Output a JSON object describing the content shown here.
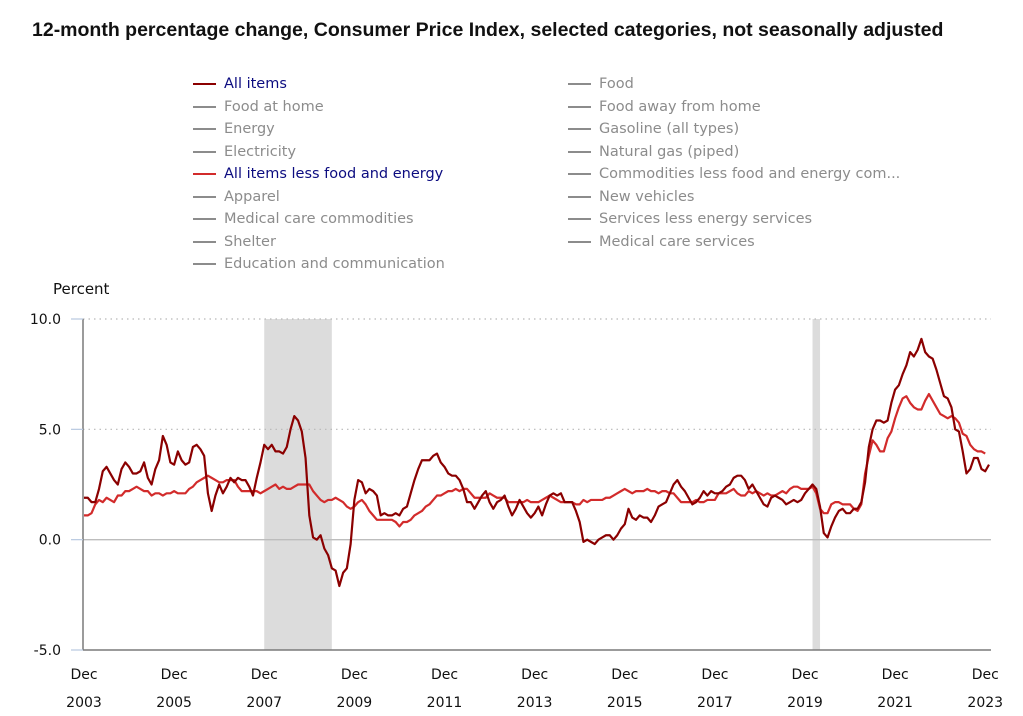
{
  "title": "12-month percentage change, Consumer Price Index, selected categories, not seasonally adjusted",
  "legend": {
    "left": [
      {
        "label": "All items",
        "active": true,
        "color": "#8b0000"
      },
      {
        "label": "Food at home",
        "active": false,
        "color": "#8c8c8c"
      },
      {
        "label": "Energy",
        "active": false,
        "color": "#8c8c8c"
      },
      {
        "label": "Electricity",
        "active": false,
        "color": "#8c8c8c"
      },
      {
        "label": "All items less food and energy",
        "active": true,
        "color": "#d22b2b"
      },
      {
        "label": "Apparel",
        "active": false,
        "color": "#8c8c8c"
      },
      {
        "label": "Medical care commodities",
        "active": false,
        "color": "#8c8c8c"
      },
      {
        "label": "Shelter",
        "active": false,
        "color": "#8c8c8c"
      },
      {
        "label": "Education and communication",
        "active": false,
        "color": "#8c8c8c"
      }
    ],
    "right": [
      {
        "label": "Food",
        "active": false,
        "color": "#8c8c8c"
      },
      {
        "label": "Food away from home",
        "active": false,
        "color": "#8c8c8c"
      },
      {
        "label": "Gasoline (all types)",
        "active": false,
        "color": "#8c8c8c"
      },
      {
        "label": "Natural gas (piped)",
        "active": false,
        "color": "#8c8c8c"
      },
      {
        "label": "Commodities less food and energy com...",
        "active": false,
        "color": "#8c8c8c"
      },
      {
        "label": "New vehicles",
        "active": false,
        "color": "#8c8c8c"
      },
      {
        "label": "Services less energy services",
        "active": false,
        "color": "#8c8c8c"
      },
      {
        "label": "Medical care services",
        "active": false,
        "color": "#8c8c8c"
      }
    ]
  },
  "chart_data": {
    "type": "line",
    "title": "12-month percentage change, Consumer Price Index, selected categories, not seasonally adjusted",
    "xlabel": "",
    "ylabel": "Percent",
    "ylim": [
      -5.0,
      10.0
    ],
    "yticks": [
      "10.0",
      "5.0",
      "0.0",
      "-5.0"
    ],
    "ytick_values": [
      10,
      5,
      0,
      -5
    ],
    "x_start": "Dec 2003",
    "x_end": "Dec 2023",
    "x_frequency": "monthly",
    "xticks": [
      {
        "month": "Dec",
        "year": "2003",
        "index": 0
      },
      {
        "month": "Dec",
        "year": "2005",
        "index": 24
      },
      {
        "month": "Dec",
        "year": "2007",
        "index": 48
      },
      {
        "month": "Dec",
        "year": "2009",
        "index": 72
      },
      {
        "month": "Dec",
        "year": "2011",
        "index": 96
      },
      {
        "month": "Dec",
        "year": "2013",
        "index": 120
      },
      {
        "month": "Dec",
        "year": "2015",
        "index": 144
      },
      {
        "month": "Dec",
        "year": "2017",
        "index": 168
      },
      {
        "month": "Dec",
        "year": "2019",
        "index": 192
      },
      {
        "month": "Dec",
        "year": "2021",
        "index": 216
      },
      {
        "month": "Dec",
        "year": "2023",
        "index": 240
      }
    ],
    "grid": "horizontal dotted at 5.0 and 10.0",
    "recessions": [
      {
        "label": "Dec 2007 - Jun 2009",
        "start_index": 48,
        "end_index": 66
      },
      {
        "label": "Feb 2020 - Apr 2020",
        "start_index": 194,
        "end_index": 196
      }
    ],
    "series": [
      {
        "name": "All items",
        "color": "#8b0000",
        "values": [
          1.9,
          1.9,
          1.7,
          1.7,
          2.3,
          3.1,
          3.3,
          3.0,
          2.7,
          2.5,
          3.2,
          3.5,
          3.3,
          3.0,
          3.0,
          3.1,
          3.5,
          2.8,
          2.5,
          3.2,
          3.6,
          4.7,
          4.3,
          3.5,
          3.4,
          4.0,
          3.6,
          3.4,
          3.5,
          4.2,
          4.3,
          4.1,
          3.8,
          2.1,
          1.3,
          2.0,
          2.5,
          2.1,
          2.4,
          2.8,
          2.6,
          2.8,
          2.7,
          2.7,
          2.4,
          2.0,
          2.8,
          3.5,
          4.3,
          4.1,
          4.3,
          4.0,
          4.0,
          3.9,
          4.2,
          5.0,
          5.6,
          5.4,
          4.9,
          3.7,
          1.1,
          0.1,
          0.0,
          0.2,
          -0.4,
          -0.7,
          -1.3,
          -1.4,
          -2.1,
          -1.5,
          -1.3,
          -0.2,
          1.8,
          2.7,
          2.6,
          2.1,
          2.3,
          2.2,
          2.0,
          1.1,
          1.2,
          1.1,
          1.1,
          1.2,
          1.1,
          1.4,
          1.5,
          2.1,
          2.7,
          3.2,
          3.6,
          3.6,
          3.6,
          3.8,
          3.9,
          3.5,
          3.3,
          3.0,
          2.9,
          2.9,
          2.7,
          2.3,
          1.7,
          1.7,
          1.4,
          1.7,
          2.0,
          2.2,
          1.7,
          1.4,
          1.7,
          1.8,
          2.0,
          1.5,
          1.1,
          1.4,
          1.8,
          1.5,
          1.2,
          1.0,
          1.2,
          1.5,
          1.1,
          1.6,
          2.0,
          2.1,
          2.0,
          2.1,
          1.7,
          1.7,
          1.7,
          1.3,
          0.8,
          -0.1,
          0.0,
          -0.1,
          -0.2,
          0.0,
          0.1,
          0.2,
          0.2,
          0.0,
          0.2,
          0.5,
          0.7,
          1.4,
          1.0,
          0.9,
          1.1,
          1.0,
          1.0,
          0.8,
          1.1,
          1.5,
          1.6,
          1.7,
          2.1,
          2.5,
          2.7,
          2.4,
          2.2,
          1.9,
          1.6,
          1.7,
          1.9,
          2.2,
          2.0,
          2.2,
          2.1,
          2.1,
          2.2,
          2.4,
          2.5,
          2.8,
          2.9,
          2.9,
          2.7,
          2.3,
          2.5,
          2.2,
          1.9,
          1.6,
          1.5,
          1.9,
          2.0,
          1.9,
          1.8,
          1.6,
          1.7,
          1.8,
          1.7,
          1.8,
          2.1,
          2.3,
          2.5,
          2.3,
          1.5,
          0.3,
          0.1,
          0.6,
          1.0,
          1.3,
          1.4,
          1.2,
          1.2,
          1.4,
          1.4,
          1.7,
          2.6,
          4.2,
          5.0,
          5.4,
          5.4,
          5.3,
          5.4,
          6.2,
          6.8,
          7.0,
          7.5,
          7.9,
          8.5,
          8.3,
          8.6,
          9.1,
          8.5,
          8.3,
          8.2,
          7.7,
          7.1,
          6.5,
          6.4,
          6.0,
          5.0,
          4.9,
          4.0,
          3.0,
          3.2,
          3.7,
          3.7,
          3.2,
          3.1,
          3.4
        ]
      },
      {
        "name": "All items less food and energy",
        "color": "#d22b2b",
        "values": [
          1.1,
          1.1,
          1.2,
          1.6,
          1.8,
          1.7,
          1.9,
          1.8,
          1.7,
          2.0,
          2.0,
          2.2,
          2.2,
          2.3,
          2.4,
          2.3,
          2.2,
          2.2,
          2.0,
          2.1,
          2.1,
          2.0,
          2.1,
          2.1,
          2.2,
          2.1,
          2.1,
          2.1,
          2.3,
          2.4,
          2.6,
          2.7,
          2.8,
          2.9,
          2.8,
          2.7,
          2.6,
          2.6,
          2.7,
          2.7,
          2.7,
          2.4,
          2.2,
          2.2,
          2.2,
          2.2,
          2.2,
          2.1,
          2.2,
          2.3,
          2.4,
          2.5,
          2.3,
          2.4,
          2.3,
          2.3,
          2.4,
          2.5,
          2.5,
          2.5,
          2.5,
          2.2,
          2.0,
          1.8,
          1.7,
          1.8,
          1.8,
          1.9,
          1.8,
          1.7,
          1.5,
          1.4,
          1.5,
          1.7,
          1.8,
          1.6,
          1.3,
          1.1,
          0.9,
          0.9,
          0.9,
          0.9,
          0.9,
          0.8,
          0.6,
          0.8,
          0.8,
          0.9,
          1.1,
          1.2,
          1.3,
          1.5,
          1.6,
          1.8,
          2.0,
          2.0,
          2.1,
          2.2,
          2.2,
          2.3,
          2.2,
          2.3,
          2.3,
          2.1,
          1.9,
          1.9,
          1.9,
          1.9,
          2.1,
          2.0,
          1.9,
          1.9,
          1.9,
          1.7,
          1.7,
          1.7,
          1.7,
          1.7,
          1.8,
          1.7,
          1.7,
          1.7,
          1.8,
          1.9,
          2.0,
          1.9,
          1.8,
          1.7,
          1.7,
          1.7,
          1.7,
          1.6,
          1.6,
          1.8,
          1.7,
          1.8,
          1.8,
          1.8,
          1.8,
          1.9,
          1.9,
          2.0,
          2.1,
          2.2,
          2.3,
          2.2,
          2.1,
          2.2,
          2.2,
          2.2,
          2.3,
          2.2,
          2.2,
          2.1,
          2.2,
          2.2,
          2.1,
          2.1,
          1.9,
          1.7,
          1.7,
          1.7,
          1.7,
          1.8,
          1.7,
          1.7,
          1.8,
          1.8,
          1.8,
          2.1,
          2.1,
          2.1,
          2.2,
          2.3,
          2.1,
          2.0,
          2.0,
          2.2,
          2.1,
          2.2,
          2.1,
          2.0,
          2.1,
          2.0,
          2.0,
          2.1,
          2.2,
          2.1,
          2.3,
          2.4,
          2.4,
          2.3,
          2.3,
          2.3,
          2.4,
          2.1,
          1.4,
          1.2,
          1.2,
          1.6,
          1.7,
          1.7,
          1.6,
          1.6,
          1.6,
          1.4,
          1.3,
          1.6,
          3.0,
          3.8,
          4.5,
          4.3,
          4.0,
          4.0,
          4.6,
          4.9,
          5.5,
          6.0,
          6.4,
          6.5,
          6.2,
          6.0,
          5.9,
          5.9,
          6.3,
          6.6,
          6.3,
          6.0,
          5.7,
          5.6,
          5.5,
          5.6,
          5.5,
          5.3,
          4.8,
          4.7,
          4.3,
          4.1,
          4.0,
          4.0,
          3.9
        ]
      }
    ]
  }
}
